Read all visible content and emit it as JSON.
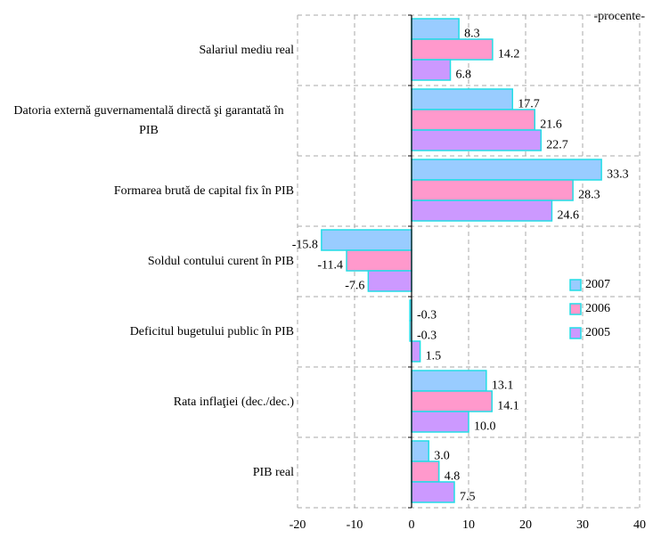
{
  "chart_data": {
    "type": "barh",
    "annotation": "-procente-",
    "categories": [
      "Salariul mediu real",
      "Datoria externă guvernamentală directă şi garantată în PIB",
      "Formarea brută de capital fix în PIB",
      "Soldul contului curent în PIB",
      "Deficitul bugetului public în PIB",
      "Rata inflaţiei (dec./dec.)",
      "PIB real"
    ],
    "series": [
      {
        "name": "2007",
        "color": "#99ccff",
        "values": [
          8.3,
          17.7,
          33.3,
          -15.8,
          -0.3,
          13.1,
          3.0
        ],
        "value_labels": [
          "8.3",
          "17.7",
          "33.3",
          "-15.8",
          "-0.3",
          "13.1",
          "3.0"
        ]
      },
      {
        "name": "2006",
        "color": "#ff99cc",
        "values": [
          14.2,
          21.6,
          28.3,
          -11.4,
          -0.3,
          14.1,
          4.8
        ],
        "value_labels": [
          "14.2",
          "21.6",
          "28.3",
          "-11.4",
          "-0.3",
          "14.1",
          "4.8"
        ]
      },
      {
        "name": "2005",
        "color": "#cc99ff",
        "values": [
          6.8,
          22.7,
          24.6,
          -7.6,
          1.5,
          10.0,
          7.5
        ],
        "value_labels": [
          "6.8",
          "22.7",
          "24.6",
          "-7.6",
          "1.5",
          "10.0",
          "7.5"
        ]
      }
    ],
    "edge_color": "#22dde6",
    "xlim": [
      -20,
      40
    ],
    "xticks": [
      -20,
      -10,
      0,
      10,
      20,
      30,
      40
    ],
    "grid": true
  }
}
